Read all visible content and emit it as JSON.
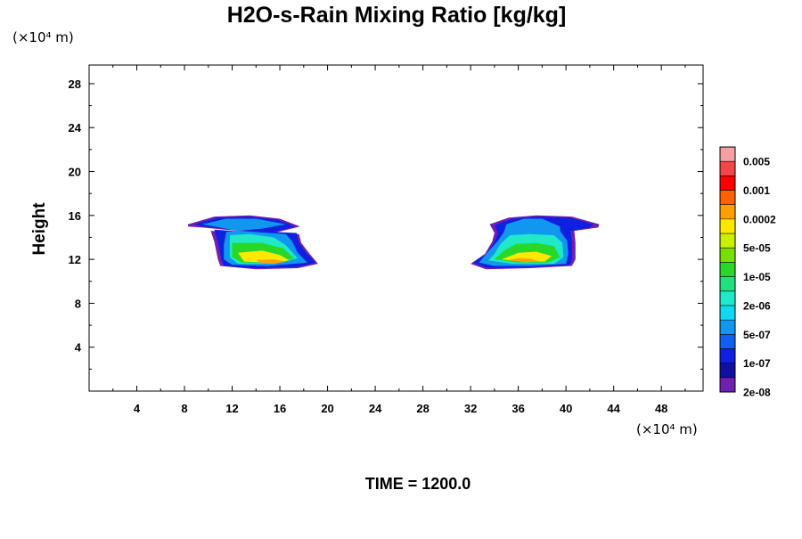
{
  "chart_data": {
    "type": "heatmap",
    "title": "H2O-s-Rain Mixing Ratio [kg/kg]",
    "xlabel": "",
    "ylabel": "Height",
    "x_unit": "(×10⁴ m)",
    "y_unit": "(×10⁴ m)",
    "xlim": [
      0,
      51.5
    ],
    "ylim": [
      0,
      29.7
    ],
    "x_ticks": [
      4,
      8,
      12,
      16,
      20,
      24,
      28,
      32,
      36,
      40,
      44,
      48
    ],
    "y_ticks": [
      4,
      8,
      12,
      16,
      20,
      24,
      28
    ],
    "footer": "TIME = 1200.0",
    "colorbar": {
      "labels": [
        "0.005",
        "0.001",
        "0.0002",
        "5e-05",
        "1e-05",
        "2e-06",
        "5e-07",
        "1e-07",
        "2e-08"
      ],
      "colors": [
        "#f5a0a0",
        "#f04848",
        "#ff0000",
        "#ff6000",
        "#ffa000",
        "#ffe800",
        "#c8f000",
        "#78e000",
        "#28d828",
        "#20e080",
        "#20e8c8",
        "#10d8f0",
        "#1098f0",
        "#1060f0",
        "#1020e0",
        "#1010a0",
        "#7020b0"
      ]
    },
    "fields": [
      {
        "name": "left",
        "layers": [
          {
            "color": "#7020b0",
            "points": [
              [
                8.3,
                15.2
              ],
              [
                10.5,
                15.9
              ],
              [
                13.5,
                16.0
              ],
              [
                16.0,
                15.7
              ],
              [
                17.7,
                15.0
              ],
              [
                15.5,
                14.4
              ],
              [
                12.0,
                14.5
              ],
              [
                10.2,
                14.6
              ],
              [
                10.5,
                13.6
              ],
              [
                10.8,
                12.0
              ],
              [
                11.0,
                11.4
              ],
              [
                14.0,
                11.1
              ],
              [
                17.5,
                11.2
              ],
              [
                19.2,
                11.6
              ],
              [
                18.5,
                12.5
              ],
              [
                17.8,
                13.5
              ],
              [
                17.6,
                14.3
              ],
              [
                16.0,
                14.4
              ],
              [
                13.5,
                14.5
              ],
              [
                9.5,
                14.9
              ],
              [
                8.3,
                15.0
              ]
            ]
          },
          {
            "color": "#1020e0",
            "points": [
              [
                8.8,
                15.2
              ],
              [
                10.8,
                15.8
              ],
              [
                13.5,
                15.9
              ],
              [
                15.8,
                15.6
              ],
              [
                17.3,
                15.0
              ],
              [
                15.5,
                14.5
              ],
              [
                12.0,
                14.6
              ],
              [
                10.5,
                14.7
              ],
              [
                10.8,
                13.6
              ],
              [
                11.1,
                12.0
              ],
              [
                11.3,
                11.4
              ],
              [
                14.0,
                11.2
              ],
              [
                17.5,
                11.3
              ],
              [
                19.0,
                11.7
              ],
              [
                18.3,
                12.5
              ],
              [
                17.6,
                13.5
              ],
              [
                17.4,
                14.4
              ],
              [
                13.5,
                14.6
              ],
              [
                9.6,
                15.0
              ]
            ]
          },
          {
            "color": "#1098f0",
            "points": [
              [
                9.5,
                15.2
              ],
              [
                11.5,
                15.7
              ],
              [
                14.0,
                15.7
              ],
              [
                16.5,
                15.2
              ],
              [
                14.5,
                14.8
              ],
              [
                11.5,
                14.5
              ],
              [
                11.3,
                13.3
              ],
              [
                11.3,
                12.0
              ],
              [
                12.0,
                11.5
              ],
              [
                15.0,
                11.4
              ],
              [
                18.3,
                11.7
              ],
              [
                17.5,
                12.6
              ],
              [
                17.0,
                13.7
              ],
              [
                16.5,
                14.3
              ],
              [
                12.5,
                14.6
              ]
            ]
          },
          {
            "color": "#20e8c8",
            "points": [
              [
                11.8,
                14.2
              ],
              [
                13.5,
                14.3
              ],
              [
                15.5,
                14.0
              ],
              [
                16.5,
                13.3
              ],
              [
                17.5,
                12.1
              ],
              [
                15.5,
                11.6
              ],
              [
                12.5,
                11.6
              ],
              [
                11.8,
                12.2
              ]
            ]
          },
          {
            "color": "#28d828",
            "points": [
              [
                12.0,
                13.5
              ],
              [
                14.5,
                13.5
              ],
              [
                16.3,
                13.0
              ],
              [
                17.2,
                12.1
              ],
              [
                15.5,
                11.7
              ],
              [
                12.8,
                11.7
              ],
              [
                12.0,
                12.2
              ]
            ]
          },
          {
            "color": "#ffe800",
            "points": [
              [
                12.5,
                12.6
              ],
              [
                14.5,
                12.8
              ],
              [
                16.0,
                12.4
              ],
              [
                16.8,
                11.9
              ],
              [
                15.5,
                11.7
              ],
              [
                13.0,
                11.8
              ]
            ]
          },
          {
            "color": "#ffa000",
            "points": [
              [
                14.0,
                11.95
              ],
              [
                15.5,
                12.0
              ],
              [
                16.5,
                11.8
              ],
              [
                15.5,
                11.6
              ],
              [
                14.3,
                11.7
              ]
            ]
          }
        ]
      },
      {
        "name": "right",
        "layers": [
          {
            "color": "#7020b0",
            "points": [
              [
                32.0,
                11.6
              ],
              [
                33.3,
                11.1
              ],
              [
                37.0,
                11.2
              ],
              [
                40.5,
                11.4
              ],
              [
                40.8,
                12.0
              ],
              [
                40.8,
                13.5
              ],
              [
                40.7,
                14.6
              ],
              [
                42.7,
                14.9
              ],
              [
                42.8,
                15.2
              ],
              [
                40.5,
                15.9
              ],
              [
                37.5,
                16.0
              ],
              [
                35.2,
                15.8
              ],
              [
                33.6,
                15.2
              ],
              [
                34.0,
                14.4
              ],
              [
                33.8,
                13.6
              ],
              [
                33.2,
                12.5
              ]
            ]
          },
          {
            "color": "#1020e0",
            "points": [
              [
                32.2,
                11.7
              ],
              [
                33.5,
                11.2
              ],
              [
                37.0,
                11.3
              ],
              [
                40.3,
                11.5
              ],
              [
                40.5,
                12.0
              ],
              [
                40.5,
                13.5
              ],
              [
                40.4,
                14.6
              ],
              [
                42.0,
                14.9
              ],
              [
                42.3,
                15.2
              ],
              [
                40.3,
                15.8
              ],
              [
                37.5,
                15.9
              ],
              [
                35.5,
                15.7
              ],
              [
                34.0,
                15.1
              ],
              [
                34.3,
                14.4
              ],
              [
                34.0,
                13.6
              ],
              [
                33.3,
                12.5
              ]
            ]
          },
          {
            "color": "#1098f0",
            "points": [
              [
                32.7,
                11.7
              ],
              [
                34.0,
                11.4
              ],
              [
                37.0,
                11.4
              ],
              [
                40.0,
                11.6
              ],
              [
                40.2,
                12.5
              ],
              [
                40.1,
                13.7
              ],
              [
                39.5,
                14.6
              ],
              [
                39.5,
                15.0
              ],
              [
                38.0,
                15.7
              ],
              [
                36.5,
                15.7
              ],
              [
                35.0,
                15.2
              ],
              [
                34.8,
                14.5
              ],
              [
                34.3,
                13.7
              ],
              [
                33.3,
                12.5
              ]
            ]
          },
          {
            "color": "#20e8c8",
            "points": [
              [
                33.5,
                11.9
              ],
              [
                35.5,
                11.6
              ],
              [
                39.0,
                11.6
              ],
              [
                39.8,
                12.2
              ],
              [
                39.7,
                13.5
              ],
              [
                39.0,
                14.2
              ],
              [
                37.0,
                14.3
              ],
              [
                35.3,
                14.2
              ],
              [
                34.5,
                13.4
              ],
              [
                34.0,
                12.5
              ]
            ]
          },
          {
            "color": "#28d828",
            "points": [
              [
                34.0,
                12.0
              ],
              [
                36.0,
                11.7
              ],
              [
                38.5,
                11.7
              ],
              [
                39.5,
                12.2
              ],
              [
                39.0,
                13.2
              ],
              [
                37.5,
                13.5
              ],
              [
                35.8,
                13.4
              ],
              [
                34.8,
                12.8
              ]
            ]
          },
          {
            "color": "#ffe800",
            "points": [
              [
                34.6,
                12.0
              ],
              [
                36.2,
                11.8
              ],
              [
                38.2,
                11.8
              ],
              [
                38.8,
                12.3
              ],
              [
                37.5,
                12.7
              ],
              [
                36.0,
                12.6
              ]
            ]
          },
          {
            "color": "#ffa000",
            "points": [
              [
                35.2,
                11.95
              ],
              [
                36.5,
                11.75
              ],
              [
                37.8,
                11.8
              ],
              [
                37.0,
                12.05
              ],
              [
                36.0,
                12.1
              ]
            ]
          }
        ]
      }
    ]
  }
}
